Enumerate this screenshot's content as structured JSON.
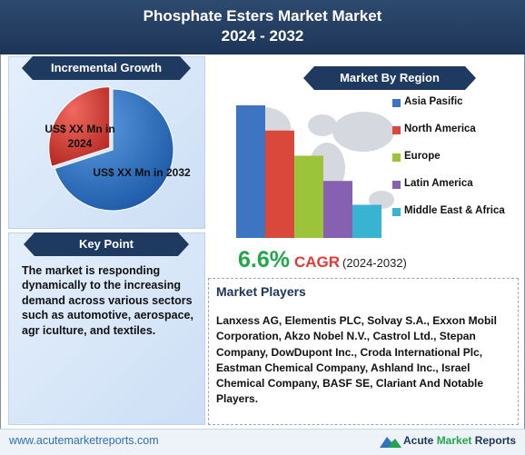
{
  "header": {
    "title_line1": "Phosphate Esters Market Market",
    "title_line2": "2024 - 2032"
  },
  "incremental_growth": {
    "heading": "Incremental Growth",
    "label_2024": "US$ XX Mn in 2024",
    "label_2032": "US$ XX Mn in 2032"
  },
  "key_point": {
    "heading": "Key Point",
    "text": "The market is responding dynamically to the increasing demand across various sectors such as automotive, aerospace, agr iculture, and textiles."
  },
  "market_by_region": {
    "heading": "Market By Region"
  },
  "cagr": {
    "value": "6.6%",
    "label": "CAGR",
    "period": "(2024-2032)"
  },
  "market_players": {
    "heading": "Market Players",
    "text": "Lanxess AG, Elementis PLC, Solvay S.A., Exxon Mobil Corporation, Akzo Nobel N.V., Castrol Ltd., Stepan Company, DowDupont Inc., Croda International Plc, Eastman Chemical Company, Ashland Inc., Israel Chemical Company, BASF SE, Clariant And Notable Players."
  },
  "footer": {
    "url": "www.acutemarketreports.com",
    "brand_acute": "Acute",
    "brand_market": "Market",
    "brand_reports": "Reports"
  },
  "colors": {
    "header_bg": "#1d3557",
    "pie_2024": "#d9403a",
    "pie_2032": "#2f74c0",
    "cagr_value": "#22a64a",
    "cagr_label": "#e53935"
  },
  "chart_data": [
    {
      "type": "pie",
      "labels": [
        "US$ XX Mn in 2024",
        "US$ XX Mn in 2032"
      ],
      "values": [
        30,
        70
      ],
      "colors": [
        "#d9403a",
        "#2f74c0"
      ]
    },
    {
      "type": "bar",
      "categories": [
        "Asia Pasific",
        "North America",
        "Europe",
        "Latin America",
        "Middle East & Africa"
      ],
      "values": [
        100,
        81,
        62,
        43,
        25
      ],
      "colors": [
        "#3e75c2",
        "#d9483b",
        "#9cc43a",
        "#8661b2",
        "#38b3d1"
      ],
      "legend": "right",
      "grid": false
    }
  ]
}
